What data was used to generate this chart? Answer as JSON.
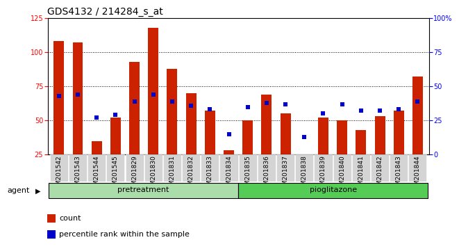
{
  "title": "GDS4132 / 214284_s_at",
  "samples": [
    "GSM201542",
    "GSM201543",
    "GSM201544",
    "GSM201545",
    "GSM201829",
    "GSM201830",
    "GSM201831",
    "GSM201832",
    "GSM201833",
    "GSM201834",
    "GSM201835",
    "GSM201836",
    "GSM201837",
    "GSM201838",
    "GSM201839",
    "GSM201840",
    "GSM201841",
    "GSM201842",
    "GSM201843",
    "GSM201844"
  ],
  "count_values": [
    108,
    107,
    35,
    52,
    93,
    118,
    88,
    70,
    57,
    28,
    50,
    69,
    55,
    25,
    52,
    50,
    43,
    53,
    57,
    82
  ],
  "percentile_values": [
    43,
    44,
    27,
    29,
    39,
    44,
    39,
    36,
    33,
    15,
    35,
    38,
    37,
    13,
    30,
    37,
    32,
    32,
    33,
    39
  ],
  "pretreatment_count": 10,
  "pioglitazone_count": 10,
  "bar_color": "#cc2200",
  "dot_color": "#0000cc",
  "pretreatment_color": "#aaddaa",
  "pioglitazone_color": "#55cc55",
  "agent_label": "agent",
  "pretreatment_label": "pretreatment",
  "pioglitazone_label": "pioglitazone",
  "legend_count": "count",
  "legend_percentile": "percentile rank within the sample",
  "ylim_left": [
    25,
    125
  ],
  "yticks_left": [
    25,
    50,
    75,
    100,
    125
  ],
  "ylim_right": [
    0,
    100
  ],
  "yticks_right": [
    0,
    25,
    50,
    75,
    100
  ],
  "title_fontsize": 10,
  "tick_fontsize": 7,
  "label_fontsize": 7,
  "group_fontsize": 8,
  "background_color": "#ffffff"
}
